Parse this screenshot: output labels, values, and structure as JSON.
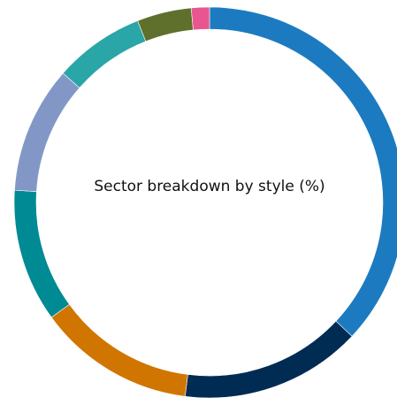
{
  "chart_data": {
    "type": "pie",
    "title": "Sector breakdown by style (%)",
    "donut": true,
    "slices": [
      {
        "value": 37.0,
        "color": "#1c7bc0"
      },
      {
        "value": 15.0,
        "color": "#002c54"
      },
      {
        "value": 13.0,
        "color": "#d07600"
      },
      {
        "value": 11.0,
        "color": "#008a94"
      },
      {
        "value": 10.5,
        "color": "#8397c7"
      },
      {
        "value": 7.5,
        "color": "#2aa5a8"
      },
      {
        "value": 4.5,
        "color": "#5f6f2c"
      },
      {
        "value": 1.5,
        "color": "#e9568f"
      }
    ]
  }
}
